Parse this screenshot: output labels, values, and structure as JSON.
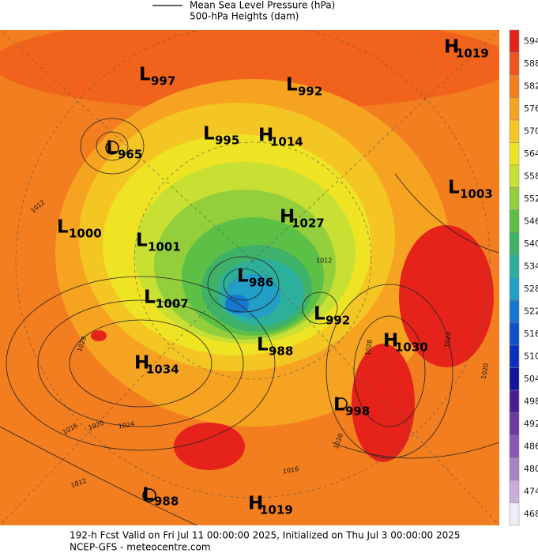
{
  "header": {
    "lines": [
      "Mean Sea Level Pressure (hPa)",
      "500-hPa Heights (dam)"
    ]
  },
  "colorbar": {
    "ticks": [
      594,
      588,
      582,
      576,
      570,
      564,
      558,
      552,
      546,
      540,
      534,
      528,
      522,
      516,
      510,
      504,
      498,
      492,
      486,
      480,
      474,
      468
    ],
    "colors": [
      "#e5231b",
      "#f0521d",
      "#f37e1f",
      "#f6a321",
      "#f4c623",
      "#efe424",
      "#c7e033",
      "#93cf3c",
      "#5cbf46",
      "#3fb26a",
      "#2cb09c",
      "#229ec7",
      "#1577cf",
      "#0d52cc",
      "#0c2fc2",
      "#13169c",
      "#4a1e93",
      "#6b3aa3",
      "#8959b1",
      "#a784c2",
      "#c8aed8",
      "#f3ecf7"
    ]
  },
  "centers": [
    {
      "kind": "L",
      "pressure": 997
    },
    {
      "kind": "L",
      "pressure": 992
    },
    {
      "kind": "H",
      "pressure": 1019
    },
    {
      "kind": "L",
      "pressure": 965
    },
    {
      "kind": "L",
      "pressure": 995
    },
    {
      "kind": "H",
      "pressure": 1014
    },
    {
      "kind": "L",
      "pressure": 1003
    },
    {
      "kind": "L",
      "pressure": 1000
    },
    {
      "kind": "L",
      "pressure": 1001
    },
    {
      "kind": "H",
      "pressure": 1027
    },
    {
      "kind": "L",
      "pressure": 986
    },
    {
      "kind": "L",
      "pressure": 1007
    },
    {
      "kind": "L",
      "pressure": 992
    },
    {
      "kind": "H",
      "pressure": 1030
    },
    {
      "kind": "L",
      "pressure": 988
    },
    {
      "kind": "H",
      "pressure": 1034
    },
    {
      "kind": "L",
      "pressure": 998
    },
    {
      "kind": "L",
      "pressure": 988
    },
    {
      "kind": "H",
      "pressure": 1019
    }
  ],
  "contour_labels": [
    1012,
    1028,
    1016,
    1020,
    1024,
    1012,
    1028,
    1024,
    1020,
    1020,
    1016,
    1012
  ],
  "footer": {
    "lines": [
      "192-h Fcst Valid on Fri Jul 11 00:00:00 2025, Initialized on Thu Jul 3 00:00:00 2025",
      "NCEP-GFS - meteocentre.com"
    ]
  }
}
